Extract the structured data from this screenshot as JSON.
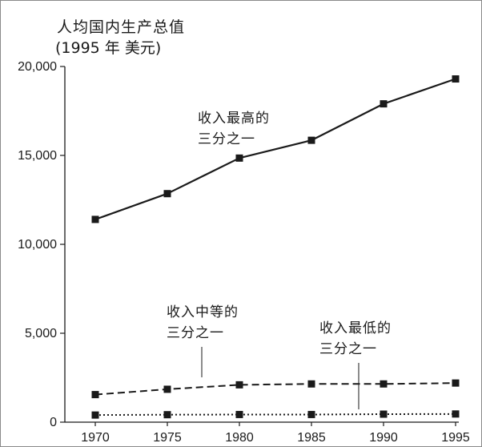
{
  "header": {
    "title": "人均国内生产总值",
    "unit": "(1995 年  美元)"
  },
  "chart_data": {
    "type": "line",
    "title": "人均国内生产总值",
    "ylabel": "(1995 年  美元)",
    "xlabel": "",
    "x": [
      1970,
      1975,
      1980,
      1985,
      1990,
      1995
    ],
    "ylim": [
      0,
      20000
    ],
    "yticks": [
      0,
      5000,
      10000,
      15000,
      20000
    ],
    "ytick_labels": [
      "0",
      "5,000",
      "10,000",
      "15,000",
      "20,000"
    ],
    "xtick_labels": [
      "1970",
      "1975",
      "1980",
      "1985",
      "1990",
      "1995"
    ],
    "grid": false,
    "legend": "none",
    "series": [
      {
        "key": "top",
        "label_lines": [
          "收入最高的",
          "三分之一"
        ],
        "values": [
          11400,
          12850,
          14850,
          15850,
          17900,
          19300
        ],
        "style": "solid",
        "color": "#1a1a1a"
      },
      {
        "key": "middle",
        "label_lines": [
          "收入中等的",
          "三分之一"
        ],
        "values": [
          1550,
          1850,
          2100,
          2150,
          2150,
          2200
        ],
        "style": "dashed",
        "color": "#1a1a1a"
      },
      {
        "key": "bottom",
        "label_lines": [
          "收入最低的",
          "三分之一"
        ],
        "values": [
          400,
          420,
          430,
          430,
          450,
          460
        ],
        "style": "dotted",
        "color": "#1a1a1a"
      }
    ]
  }
}
